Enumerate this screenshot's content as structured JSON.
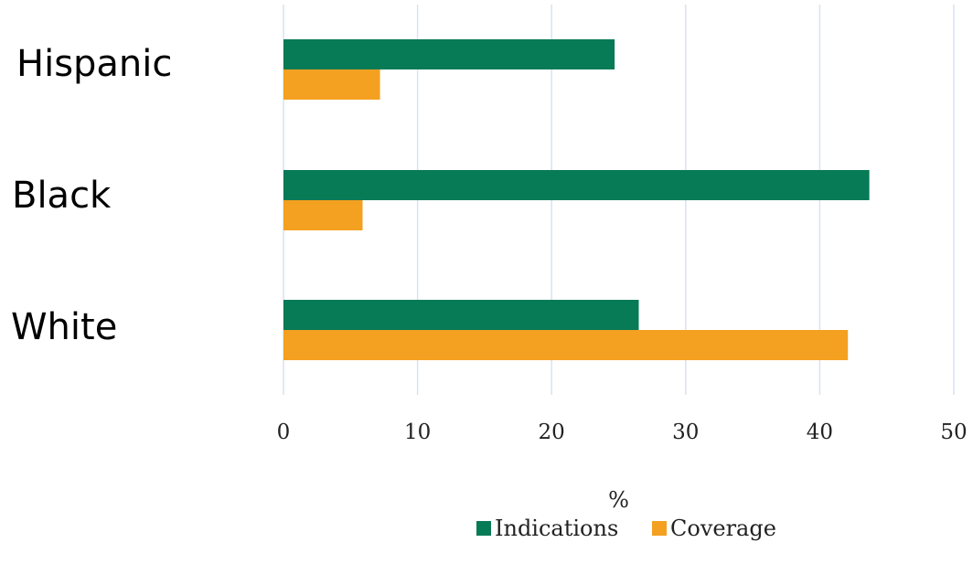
{
  "chart_data": {
    "type": "bar",
    "orientation": "horizontal",
    "title": "",
    "xlabel": "%",
    "ylabel": "",
    "xlim": [
      0,
      50
    ],
    "x_ticks": [
      0,
      10,
      20,
      30,
      40,
      50
    ],
    "x_tick_labels": [
      "0",
      "10",
      "20",
      "30",
      "40",
      "50"
    ],
    "grid": "vertical",
    "categories": [
      "Hispanic",
      "Black",
      "White"
    ],
    "series": [
      {
        "name": "Indications",
        "values": [
          24.7,
          43.7,
          26.5
        ],
        "color": "#077a56"
      },
      {
        "name": "Coverage",
        "values": [
          7.2,
          5.9,
          42.1
        ],
        "color": "#f4a020"
      }
    ],
    "legend": {
      "placement": "bottom-right",
      "entries": [
        "Indications",
        "Coverage"
      ]
    }
  }
}
